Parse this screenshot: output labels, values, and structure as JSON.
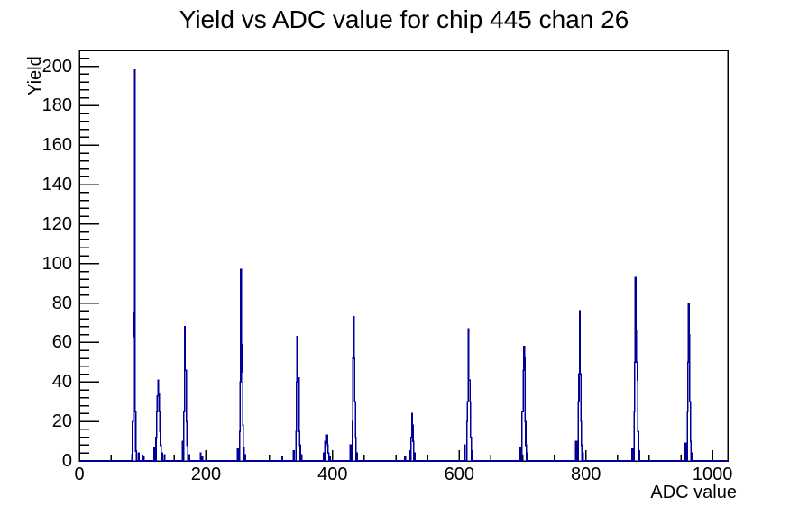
{
  "title": "Yield vs ADC value for chip 445 chan 26",
  "axes": {
    "x": {
      "label": "ADC value",
      "min": 0,
      "max": 1024,
      "major_ticks": [
        0,
        200,
        400,
        600,
        800,
        1000
      ],
      "major_tick_labels": [
        "0",
        "200",
        "400",
        "600",
        "800",
        "1000"
      ],
      "minor_step": 50
    },
    "y": {
      "label": "Yield",
      "min": 0,
      "max": 208,
      "major_ticks": [
        0,
        20,
        40,
        60,
        80,
        100,
        120,
        140,
        160,
        180,
        200
      ],
      "major_tick_labels": [
        "0",
        "20",
        "40",
        "60",
        "80",
        "100",
        "120",
        "140",
        "160",
        "180",
        "200"
      ],
      "minor_step": 4
    }
  },
  "colors": {
    "histogram_line": "#000099",
    "axis": "#000000",
    "text": "#000000",
    "background": "#ffffff"
  },
  "chart_data": {
    "type": "line",
    "style": "histogram-step",
    "title": "Yield vs ADC value for chip 445 chan 26",
    "xlabel": "ADC value",
    "ylabel": "Yield",
    "xlim": [
      0,
      1024
    ],
    "ylim": [
      0,
      208
    ],
    "grid": false,
    "legend": false,
    "bin_width": 1,
    "baseline": 0,
    "peaks": [
      {
        "adc": 87,
        "yield": 198
      },
      {
        "adc": 124,
        "yield": 41
      },
      {
        "adc": 166,
        "yield": 68
      },
      {
        "adc": 255,
        "yield": 97
      },
      {
        "adc": 344,
        "yield": 63
      },
      {
        "adc": 389,
        "yield": 13
      },
      {
        "adc": 433,
        "yield": 73
      },
      {
        "adc": 525,
        "yield": 24
      },
      {
        "adc": 614,
        "yield": 67
      },
      {
        "adc": 702,
        "yield": 58
      },
      {
        "adc": 790,
        "yield": 76
      },
      {
        "adc": 878,
        "yield": 93
      },
      {
        "adc": 962,
        "yield": 80
      }
    ],
    "bins": [
      [
        83,
        3
      ],
      [
        84,
        20
      ],
      [
        85,
        63
      ],
      [
        86,
        75
      ],
      [
        87,
        198
      ],
      [
        88,
        25
      ],
      [
        89,
        5
      ],
      [
        93,
        4
      ],
      [
        101,
        2
      ],
      [
        118,
        7
      ],
      [
        121,
        12
      ],
      [
        122,
        25
      ],
      [
        123,
        33
      ],
      [
        124,
        41
      ],
      [
        125,
        34
      ],
      [
        126,
        25
      ],
      [
        127,
        15
      ],
      [
        128,
        8
      ],
      [
        130,
        4
      ],
      [
        134,
        3
      ],
      [
        163,
        10
      ],
      [
        165,
        25
      ],
      [
        166,
        68
      ],
      [
        167,
        46
      ],
      [
        168,
        46
      ],
      [
        169,
        20
      ],
      [
        170,
        8
      ],
      [
        173,
        3
      ],
      [
        191,
        4
      ],
      [
        194,
        2
      ],
      [
        250,
        6
      ],
      [
        253,
        15
      ],
      [
        254,
        40
      ],
      [
        255,
        97
      ],
      [
        256,
        59
      ],
      [
        257,
        45
      ],
      [
        258,
        18
      ],
      [
        259,
        7
      ],
      [
        261,
        3
      ],
      [
        320,
        2
      ],
      [
        338,
        5
      ],
      [
        342,
        15
      ],
      [
        343,
        40
      ],
      [
        344,
        63
      ],
      [
        345,
        42
      ],
      [
        346,
        42
      ],
      [
        347,
        15
      ],
      [
        348,
        8
      ],
      [
        350,
        3
      ],
      [
        386,
        4
      ],
      [
        388,
        10
      ],
      [
        389,
        13
      ],
      [
        390,
        9
      ],
      [
        391,
        13
      ],
      [
        392,
        8
      ],
      [
        393,
        4
      ],
      [
        395,
        2
      ],
      [
        428,
        8
      ],
      [
        431,
        20
      ],
      [
        432,
        52
      ],
      [
        433,
        73
      ],
      [
        434,
        52
      ],
      [
        435,
        30
      ],
      [
        436,
        12
      ],
      [
        438,
        4
      ],
      [
        514,
        2
      ],
      [
        521,
        5
      ],
      [
        524,
        12
      ],
      [
        525,
        24
      ],
      [
        526,
        18
      ],
      [
        527,
        10
      ],
      [
        529,
        4
      ],
      [
        608,
        8
      ],
      [
        612,
        20
      ],
      [
        613,
        30
      ],
      [
        614,
        67
      ],
      [
        615,
        41
      ],
      [
        616,
        41
      ],
      [
        617,
        30
      ],
      [
        618,
        12
      ],
      [
        620,
        5
      ],
      [
        696,
        7
      ],
      [
        699,
        25
      ],
      [
        700,
        25
      ],
      [
        701,
        46
      ],
      [
        702,
        58
      ],
      [
        703,
        52
      ],
      [
        704,
        20
      ],
      [
        705,
        8
      ],
      [
        707,
        4
      ],
      [
        784,
        10
      ],
      [
        785,
        10
      ],
      [
        788,
        30
      ],
      [
        789,
        44
      ],
      [
        790,
        76
      ],
      [
        791,
        44
      ],
      [
        792,
        20
      ],
      [
        793,
        8
      ],
      [
        795,
        4
      ],
      [
        873,
        6
      ],
      [
        876,
        25
      ],
      [
        877,
        50
      ],
      [
        878,
        93
      ],
      [
        879,
        66
      ],
      [
        880,
        50
      ],
      [
        881,
        41
      ],
      [
        882,
        15
      ],
      [
        884,
        5
      ],
      [
        957,
        9
      ],
      [
        958,
        9
      ],
      [
        960,
        25
      ],
      [
        961,
        50
      ],
      [
        962,
        80
      ],
      [
        963,
        64
      ],
      [
        964,
        30
      ],
      [
        965,
        10
      ],
      [
        967,
        4
      ]
    ]
  }
}
